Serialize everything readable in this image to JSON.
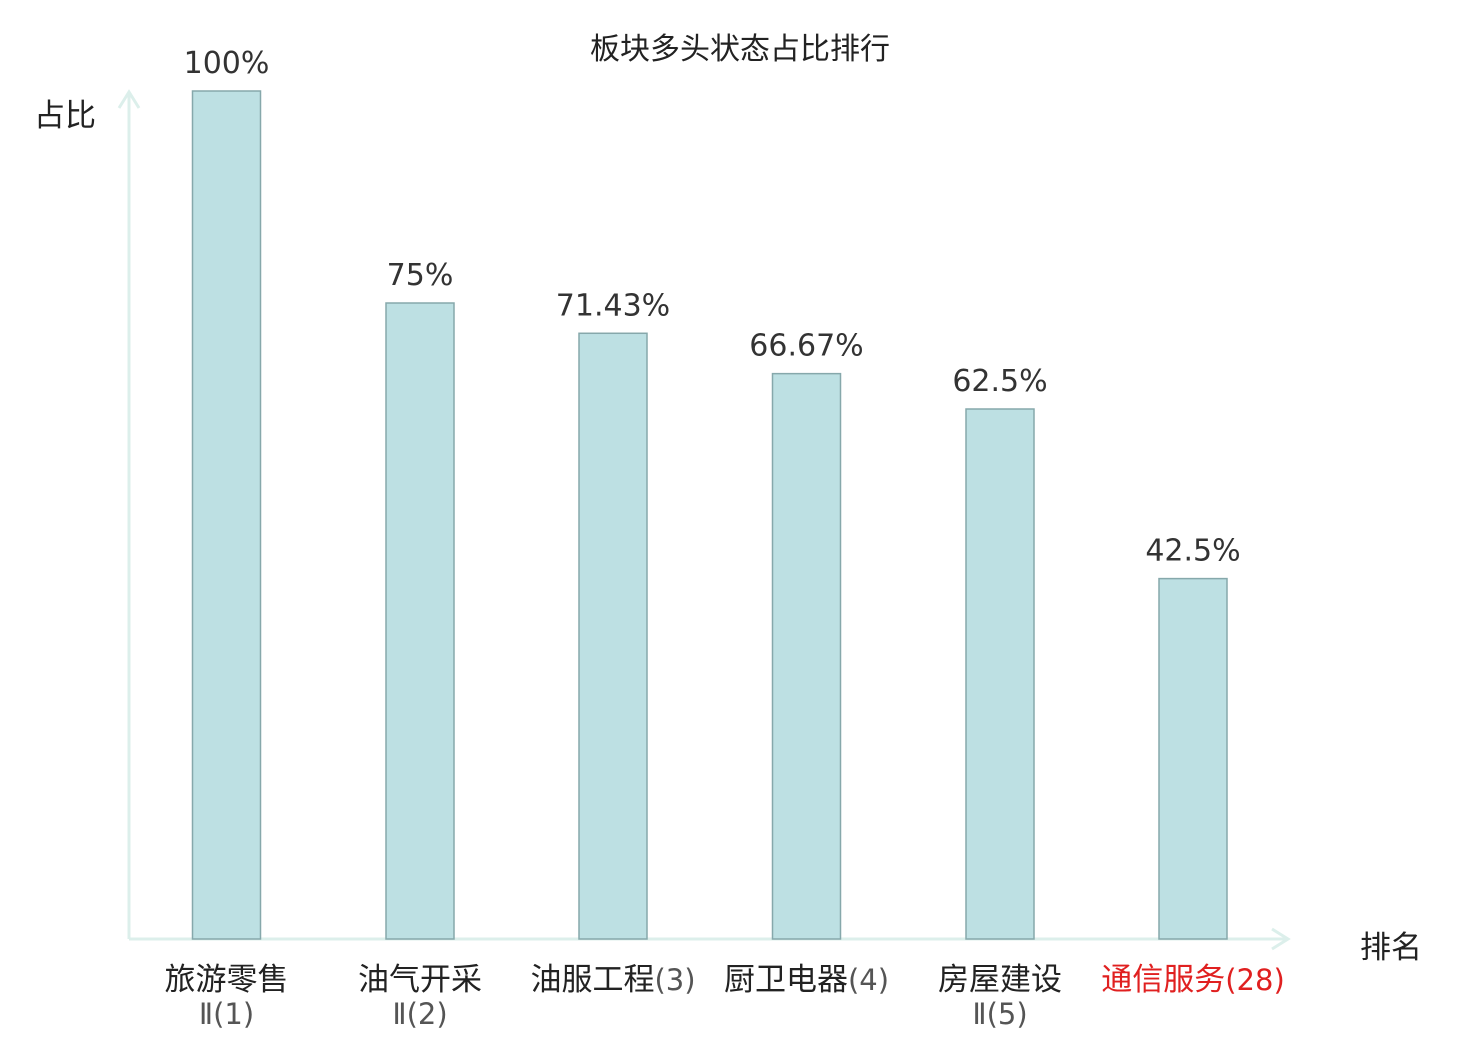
{
  "chart_data": {
    "type": "bar",
    "title": "板块多头状态占比排行",
    "ylabel": "占比",
    "xlabel": "排名",
    "ylim": [
      0,
      100
    ],
    "grid": false,
    "bar_color": "#bde0e3",
    "bar_stroke": "#86a8ab",
    "axis_color": "#dcefeb",
    "highlight_color": "#e02020",
    "categories": [
      {
        "name": "旅游零售",
        "suffix": "Ⅱ(1)",
        "wrap": true,
        "highlight": false
      },
      {
        "name": "油气开采",
        "suffix": "Ⅱ(2)",
        "wrap": true,
        "highlight": false
      },
      {
        "name": "油服工程",
        "suffix": "(3)",
        "wrap": false,
        "highlight": false
      },
      {
        "name": "厨卫电器",
        "suffix": "(4)",
        "wrap": false,
        "highlight": false
      },
      {
        "name": "房屋建设",
        "suffix": "Ⅱ(5)",
        "wrap": true,
        "highlight": false
      },
      {
        "name": "通信服务",
        "suffix": "(28)",
        "wrap": false,
        "highlight": true
      }
    ],
    "values": [
      100,
      75,
      71.43,
      66.67,
      62.5,
      42.5
    ],
    "value_labels": [
      "100%",
      "75%",
      "71.43%",
      "66.67%",
      "62.5%",
      "42.5%"
    ]
  }
}
